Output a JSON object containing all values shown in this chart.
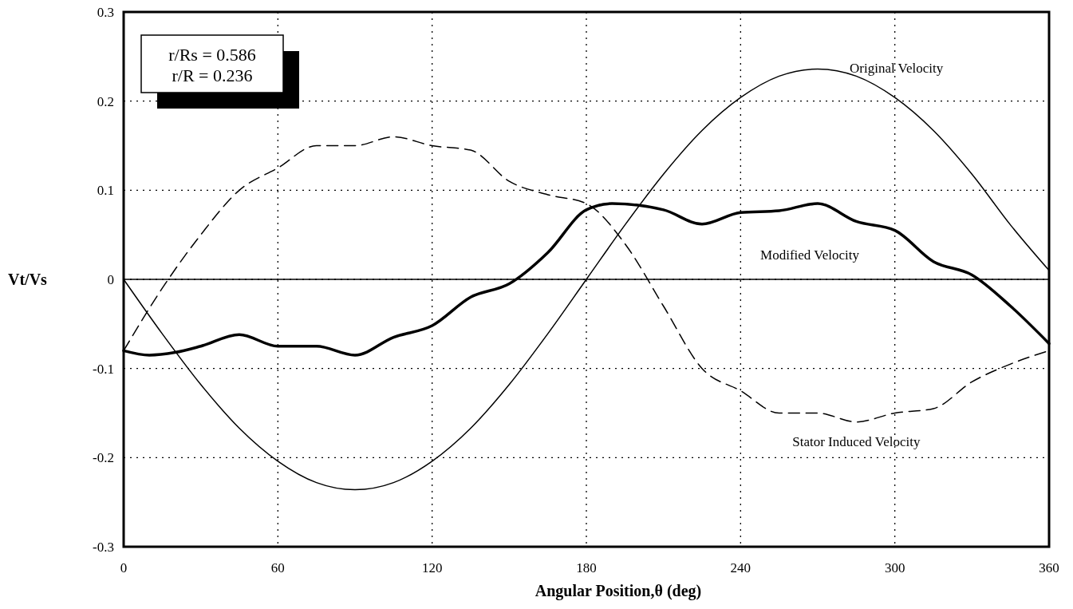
{
  "chart_data": {
    "type": "line",
    "xlabel": "Angular Position,θ  (deg)",
    "ylabel": "Vt/Vs",
    "annotations": [
      "r/Rs = 0.586\nr/R = 0.236"
    ],
    "xlim": [
      0,
      360
    ],
    "xticks": [
      0,
      60,
      120,
      180,
      240,
      300,
      360
    ],
    "ylim": [
      -0.3,
      0.3
    ],
    "yticks": [
      -0.3,
      -0.2,
      -0.1,
      0,
      0.1,
      0.2,
      0.3
    ],
    "grid": true,
    "marker": "none",
    "ref_lines": [
      {
        "axis": "y",
        "value": 0,
        "color": "#000000",
        "line_style": "solid"
      }
    ],
    "series": [
      {
        "name": "Original Velocity",
        "color": "#000000",
        "line_style": "solid",
        "x": [
          0,
          15,
          30,
          45,
          60,
          75,
          90,
          105,
          120,
          135,
          150,
          165,
          180,
          195,
          210,
          225,
          240,
          255,
          270,
          285,
          300,
          315,
          330,
          345,
          360
        ],
        "values": [
          0,
          -0.061,
          -0.118,
          -0.167,
          -0.204,
          -0.228,
          -0.236,
          -0.228,
          -0.204,
          -0.167,
          -0.118,
          -0.061,
          0,
          0.061,
          0.118,
          0.167,
          0.204,
          0.228,
          0.236,
          0.228,
          0.204,
          0.167,
          0.118,
          0.061,
          0.01
        ]
      },
      {
        "name": "Modified Velocity",
        "color": "#000000",
        "line_style": "solid",
        "x": [
          0,
          10,
          20,
          30,
          45,
          60,
          75,
          90,
          105,
          120,
          135,
          150,
          165,
          180,
          190,
          210,
          225,
          240,
          255,
          270,
          285,
          300,
          315,
          330,
          345,
          360
        ],
        "values": [
          -0.08,
          -0.085,
          -0.082,
          -0.075,
          -0.062,
          -0.075,
          -0.075,
          -0.085,
          -0.065,
          -0.052,
          -0.02,
          -0.005,
          0.03,
          0.078,
          0.085,
          0.078,
          0.062,
          0.075,
          0.077,
          0.085,
          0.065,
          0.055,
          0.02,
          0.005,
          -0.03,
          -0.072
        ]
      },
      {
        "name": "Stator Induced Velocity",
        "color": "#000000",
        "line_style": "dashed",
        "x": [
          0,
          15,
          30,
          45,
          60,
          75,
          90,
          105,
          120,
          135,
          150,
          165,
          180,
          195,
          210,
          225,
          240,
          255,
          270,
          285,
          300,
          315,
          330,
          345,
          360
        ],
        "values": [
          -0.08,
          -0.01,
          0.05,
          0.1,
          0.125,
          0.15,
          0.15,
          0.16,
          0.15,
          0.145,
          0.11,
          0.095,
          0.085,
          0.04,
          -0.03,
          -0.1,
          -0.125,
          -0.15,
          -0.15,
          -0.16,
          -0.15,
          -0.145,
          -0.115,
          -0.095,
          -0.08
        ]
      }
    ]
  }
}
